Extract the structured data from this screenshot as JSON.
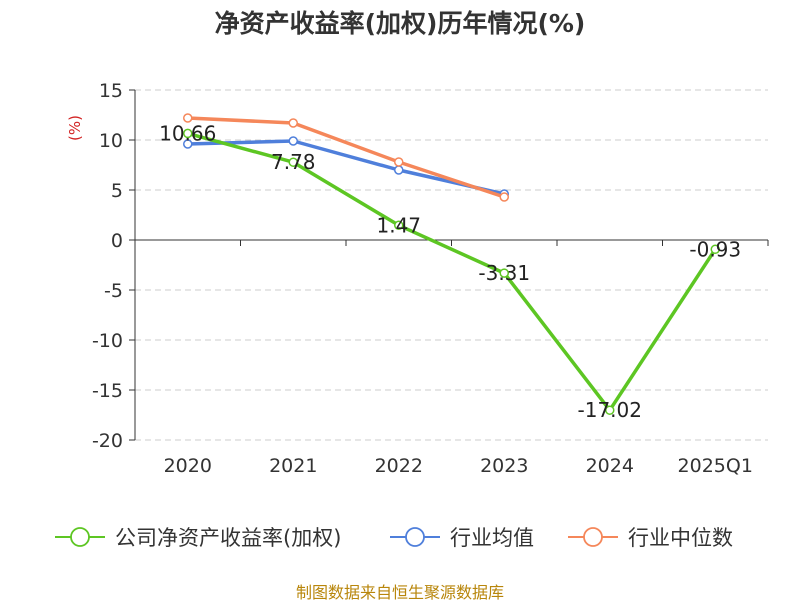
{
  "chart_data": {
    "type": "line",
    "title": "净资产收益率(加权)历年情况(%)",
    "ylabel": "(%)",
    "categories": [
      "2020",
      "2021",
      "2022",
      "2023",
      "2024",
      "2025Q1"
    ],
    "ylim": [
      -20,
      15
    ],
    "yticks": [
      15,
      10,
      5,
      0,
      -5,
      -10,
      -15,
      -20
    ],
    "grid": true,
    "legend_position": "bottom",
    "series": [
      {
        "name": "公司净资产收益率(加权)",
        "color": "#5dc623",
        "values": [
          10.66,
          7.78,
          1.47,
          -3.31,
          -17.02,
          -0.93
        ],
        "labels": [
          "10.66",
          "7.78",
          "1.47",
          "-3.31",
          "-17.02",
          "-0.93"
        ]
      },
      {
        "name": "行业均值",
        "color": "#4f7fdb",
        "values": [
          9.6,
          9.9,
          7.0,
          4.6,
          null,
          null
        ]
      },
      {
        "name": "行业中位数",
        "color": "#f5875a",
        "values": [
          12.2,
          11.7,
          7.8,
          4.3,
          null,
          null
        ]
      }
    ]
  },
  "footer": {
    "source": "制图数据来自恒生聚源数据库"
  }
}
